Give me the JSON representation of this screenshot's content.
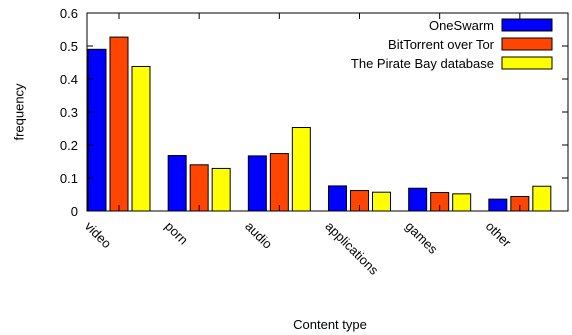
{
  "chart_data": {
    "type": "bar",
    "title": "",
    "xlabel": "Content type",
    "ylabel": "frequency",
    "ylim": [
      0,
      0.6
    ],
    "yticks": [
      0,
      0.1,
      0.2,
      0.3,
      0.4,
      0.5,
      0.6
    ],
    "ytick_labels": [
      "0",
      "0.1",
      "0.2",
      "0.3",
      "0.4",
      "0.5",
      "0.6"
    ],
    "categories": [
      "video",
      "porn",
      "audio",
      "applications",
      "games",
      "other"
    ],
    "legend_position": "top-right",
    "grid": false,
    "series": [
      {
        "name": "OneSwarm",
        "color": "#0000ff",
        "values": [
          0.49,
          0.168,
          0.167,
          0.076,
          0.069,
          0.036
        ]
      },
      {
        "name": "BitTorrent over Tor",
        "color": "#ff4500",
        "values": [
          0.527,
          0.14,
          0.174,
          0.062,
          0.056,
          0.044
        ]
      },
      {
        "name": "The Pirate Bay database",
        "color": "#ffff00",
        "values": [
          0.438,
          0.129,
          0.253,
          0.057,
          0.052,
          0.075
        ]
      }
    ]
  }
}
